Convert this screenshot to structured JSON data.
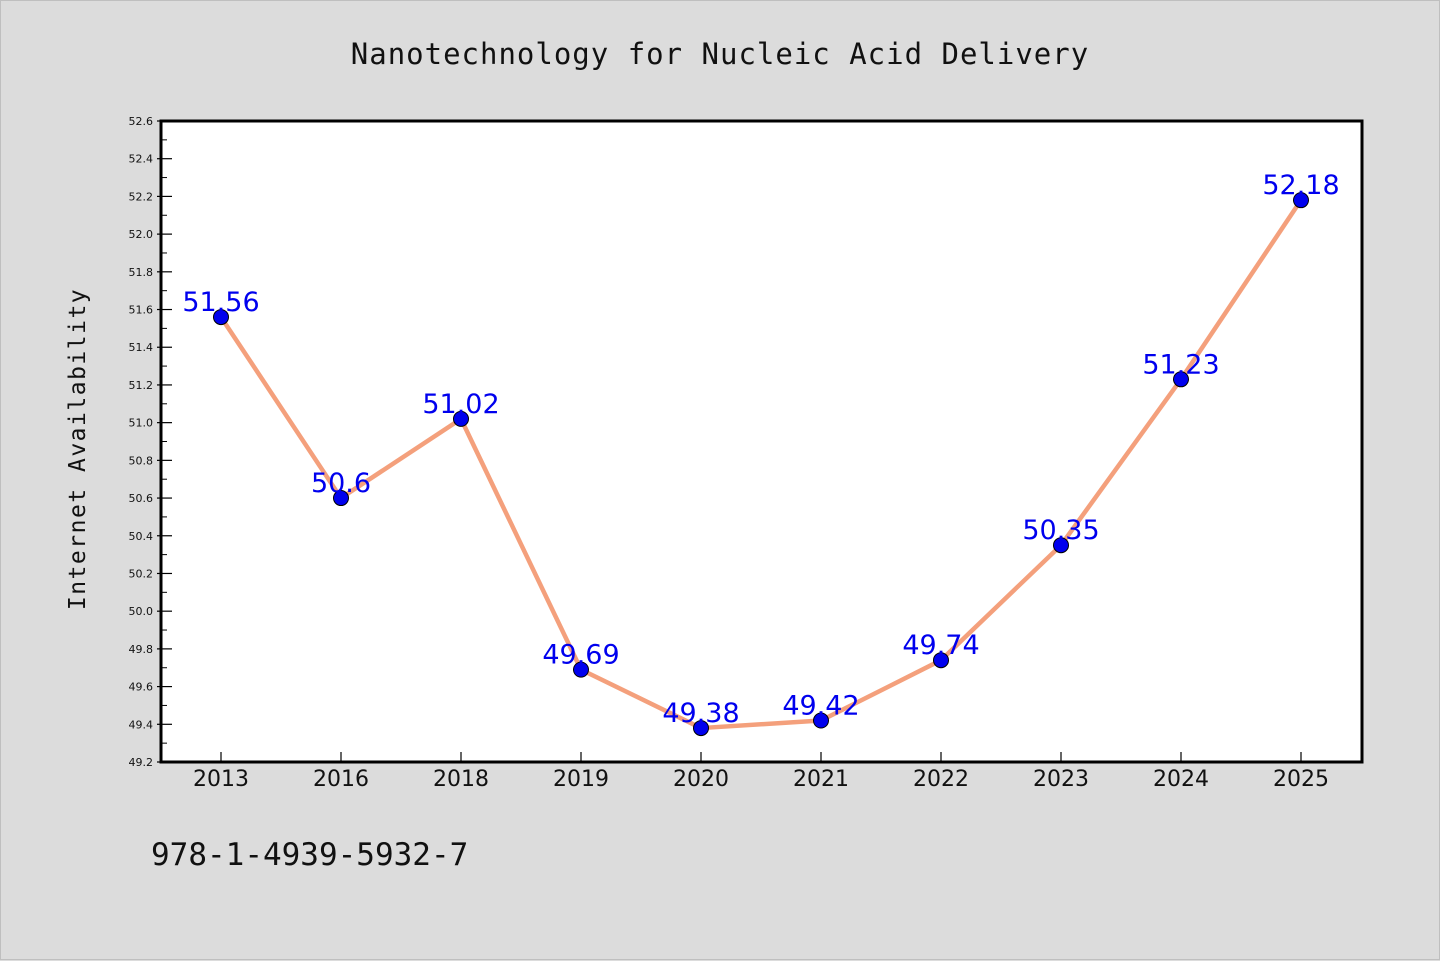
{
  "chart_data": {
    "type": "line",
    "title": "Nanotechnology for Nucleic Acid Delivery",
    "ylabel": "Internet Availability",
    "xlabel": "",
    "categories": [
      "2013",
      "2016",
      "2018",
      "2019",
      "2020",
      "2021",
      "2022",
      "2023",
      "2024",
      "2025"
    ],
    "series": [
      {
        "values": [
          51.56,
          50.6,
          51.02,
          49.69,
          49.38,
          49.42,
          49.74,
          50.35,
          51.23,
          52.18
        ],
        "data_labels": [
          "51.56",
          "50.6",
          "51.02",
          "49.69",
          "49.38",
          "49.42",
          "49.74",
          "50.35",
          "51.23",
          "52.18"
        ],
        "line_color": "#f4a07c",
        "marker_color": "#0000ee"
      }
    ],
    "ylim": [
      49.2,
      52.6
    ],
    "yticks": [
      "49.2",
      "49.4",
      "49.6",
      "49.8",
      "50.0",
      "50.2",
      "50.4",
      "50.6",
      "50.8",
      "51.0",
      "51.2",
      "51.4",
      "51.6",
      "51.8",
      "52.0",
      "52.2",
      "52.4",
      "52.6"
    ],
    "grid": false,
    "legend": "none"
  },
  "footer_text": "978-1-4939-5932-7",
  "colors": {
    "background": "#dcdcdc",
    "plot_background": "#ffffff",
    "label_color": "#0000ee",
    "text_color": "#111111"
  }
}
